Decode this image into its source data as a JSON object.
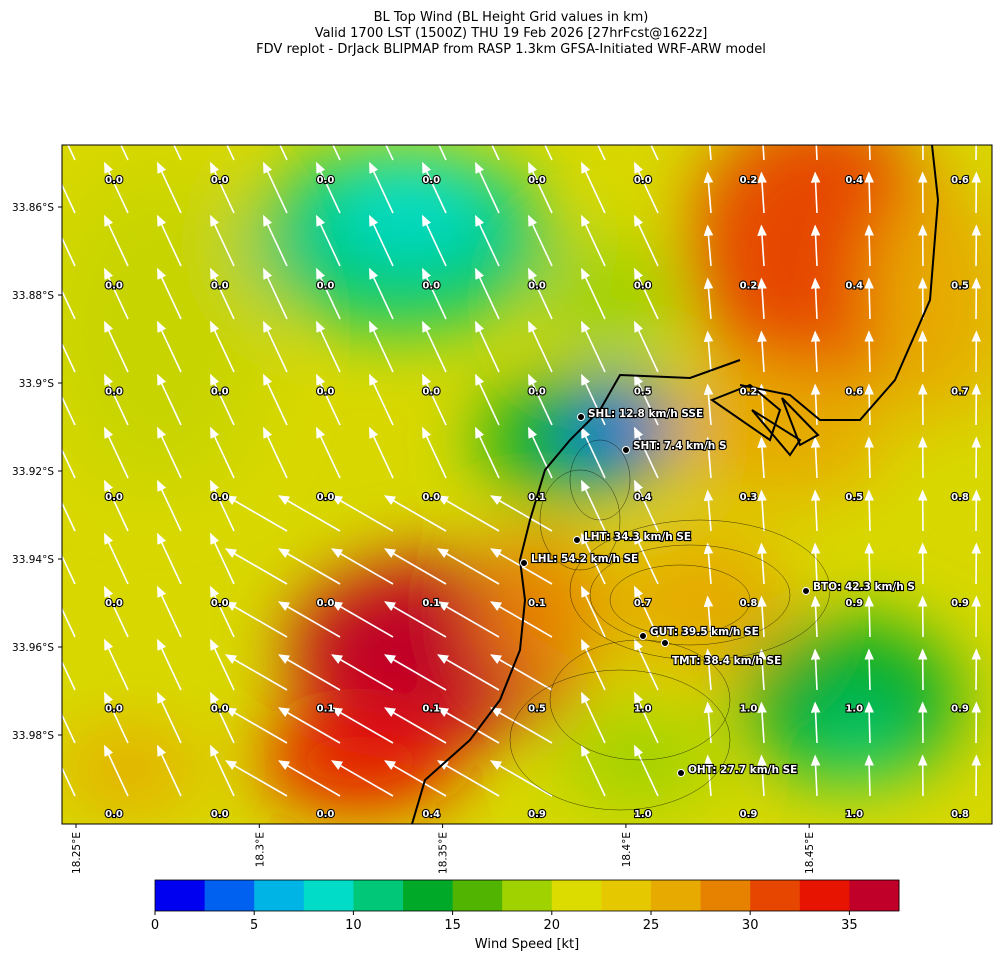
{
  "title": [
    "BL Top Wind (BL Height Grid values in km)",
    "Valid 1700 LST (1500Z) THU 19 Feb 2026 [27hrFcst@1622z]",
    "FDV replot - DrJack BLIPMAP from RASP 1.3km GFSA-Initiated WRF-ARW model"
  ],
  "map": {
    "lat_ticks": [
      "33.86°S",
      "33.88°S",
      "33.9°S",
      "33.92°S",
      "33.94°S",
      "33.96°S",
      "33.98°S"
    ],
    "lon_ticks": [
      "18.25°E",
      "18.3°E",
      "18.35°E",
      "18.4°E",
      "18.45°E"
    ],
    "height_labels": [
      [
        "0.0",
        "0.0",
        "0.0",
        "0.0",
        "0.0",
        "0.0",
        "0.2",
        "0.4",
        "0.6"
      ],
      [
        "0.0",
        "0.0",
        "0.0",
        "0.0",
        "0.0",
        "0.0",
        "0.2",
        "0.4",
        "0.5"
      ],
      [
        "0.0",
        "0.0",
        "0.0",
        "0.0",
        "0.0",
        "0.5",
        "0.2",
        "0.6",
        "0.7"
      ],
      [
        "0.0",
        "0.0",
        "0.0",
        "0.0",
        "0.1",
        "0.4",
        "0.3",
        "0.5",
        "0.8"
      ],
      [
        "0.0",
        "0.0",
        "0.0",
        "0.1",
        "0.1",
        "0.7",
        "0.8",
        "0.9",
        "0.9"
      ],
      [
        "0.0",
        "0.0",
        "0.1",
        "0.1",
        "0.5",
        "1.0",
        "1.0",
        "1.0",
        "0.9"
      ],
      [
        "0.0",
        "0.0",
        "0.0",
        "0.4",
        "0.9",
        "1.0",
        "0.9",
        "1.0",
        "0.8"
      ]
    ],
    "stations": [
      "SHL: 12.8 km/h SSE",
      "SHT: 7.4 km/h S",
      "LHT: 34.3 km/h SE",
      "LHL: 54.2 km/h SE",
      "BTO: 42.3 km/h S",
      "GUT: 39.5 km/h SE",
      "TMT: 38.4 km/h SE",
      "OHT: 27.7 km/h SE"
    ]
  },
  "colorbar": {
    "label": "Wind Speed [kt]",
    "range": [
      0,
      37.5
    ],
    "ticks": [
      0,
      5,
      10,
      15,
      20,
      25,
      30,
      35
    ],
    "colors": [
      "#0000f0",
      "#0060f0",
      "#00b4e6",
      "#00dcc8",
      "#00c878",
      "#00aa28",
      "#50b400",
      "#a0d200",
      "#dcdc00",
      "#e6c800",
      "#e6aa00",
      "#e68200",
      "#e64600",
      "#e61400",
      "#c00028"
    ]
  }
}
